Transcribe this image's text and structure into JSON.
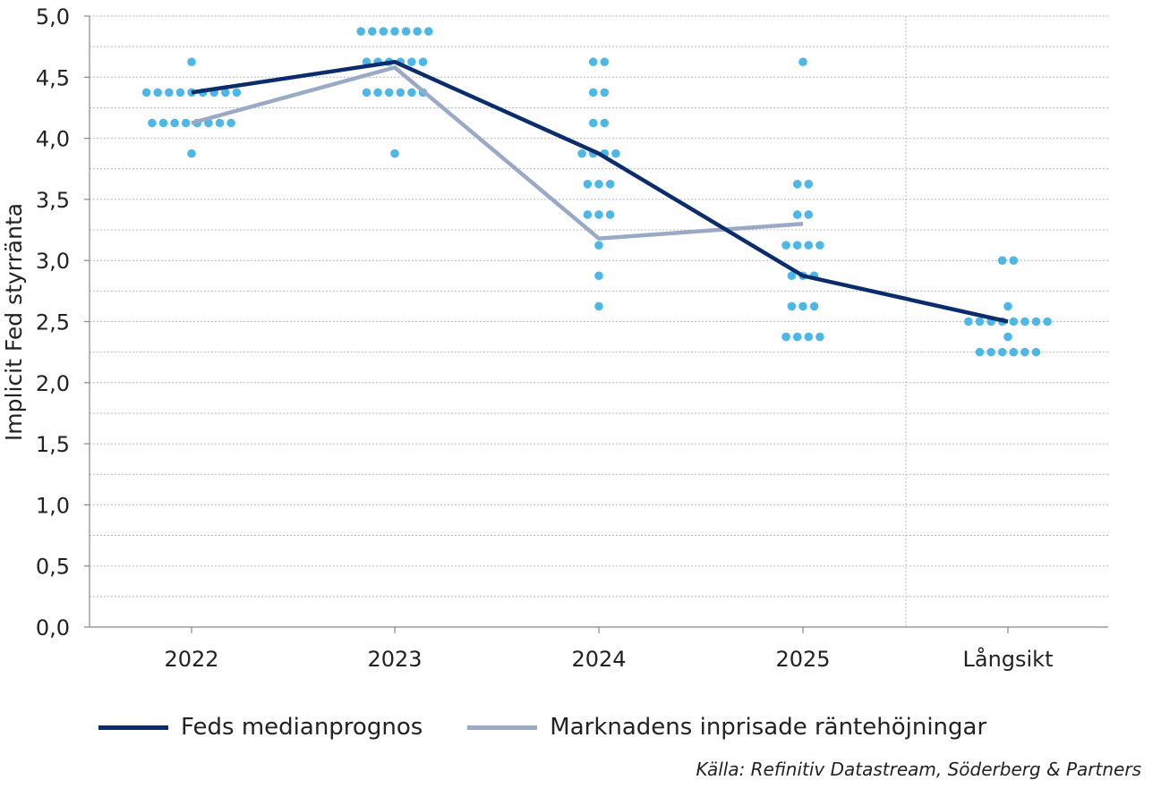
{
  "chart_data": {
    "type": "scatter",
    "ylabel": "Implicit Fed styrränta",
    "ylim": [
      0,
      5
    ],
    "yticks": [
      "0,0",
      "0,5",
      "1,0",
      "1,5",
      "2,0",
      "2,5",
      "3,0",
      "3,5",
      "4,0",
      "4,5",
      "5,0"
    ],
    "categories": [
      "2022",
      "2023",
      "2024",
      "2025",
      "Långsikt"
    ],
    "dot_color": "#4db8e8",
    "dots": [
      {
        "category": "2022",
        "levels": [
          {
            "y": 4.625,
            "count": 1
          },
          {
            "y": 4.375,
            "count": 9
          },
          {
            "y": 4.125,
            "count": 8
          },
          {
            "y": 3.875,
            "count": 1
          }
        ]
      },
      {
        "category": "2023",
        "levels": [
          {
            "y": 4.875,
            "count": 7
          },
          {
            "y": 4.625,
            "count": 6
          },
          {
            "y": 4.375,
            "count": 6
          },
          {
            "y": 3.875,
            "count": 1
          }
        ]
      },
      {
        "category": "2024",
        "levels": [
          {
            "y": 4.625,
            "count": 2
          },
          {
            "y": 4.375,
            "count": 2
          },
          {
            "y": 4.125,
            "count": 2
          },
          {
            "y": 3.875,
            "count": 4
          },
          {
            "y": 3.625,
            "count": 3
          },
          {
            "y": 3.375,
            "count": 3
          },
          {
            "y": 3.125,
            "count": 1
          },
          {
            "y": 2.875,
            "count": 1
          },
          {
            "y": 2.625,
            "count": 1
          }
        ]
      },
      {
        "category": "2025",
        "levels": [
          {
            "y": 4.625,
            "count": 1
          },
          {
            "y": 3.625,
            "count": 2
          },
          {
            "y": 3.375,
            "count": 2
          },
          {
            "y": 3.125,
            "count": 4
          },
          {
            "y": 2.875,
            "count": 3
          },
          {
            "y": 2.625,
            "count": 3
          },
          {
            "y": 2.375,
            "count": 4
          }
        ]
      },
      {
        "category": "Långsikt",
        "levels": [
          {
            "y": 3.0,
            "count": 2
          },
          {
            "y": 2.625,
            "count": 1
          },
          {
            "y": 2.5,
            "count": 8
          },
          {
            "y": 2.375,
            "count": 1
          },
          {
            "y": 2.25,
            "count": 6
          }
        ]
      }
    ],
    "series": [
      {
        "name": "Feds medianprognos",
        "color": "#0b2d6e",
        "points": [
          {
            "x": "2022",
            "y": 4.375
          },
          {
            "x": "2023",
            "y": 4.625
          },
          {
            "x": "2024",
            "y": 3.875
          },
          {
            "x": "2025",
            "y": 2.875
          },
          {
            "x": "Långsikt",
            "y": 2.5
          }
        ]
      },
      {
        "name": "Marknadens inprisade räntehöjningar",
        "color": "#9aa9c6",
        "points": [
          {
            "x": "2022",
            "y": 4.125
          },
          {
            "x": "2023",
            "y": 4.58
          },
          {
            "x": "2024",
            "y": 3.18
          },
          {
            "x": "2025",
            "y": 3.3
          }
        ]
      }
    ],
    "grid": true,
    "legend_position": "bottom"
  },
  "source": "Källa: Refinitiv Datastream, Söderberg & Partners"
}
